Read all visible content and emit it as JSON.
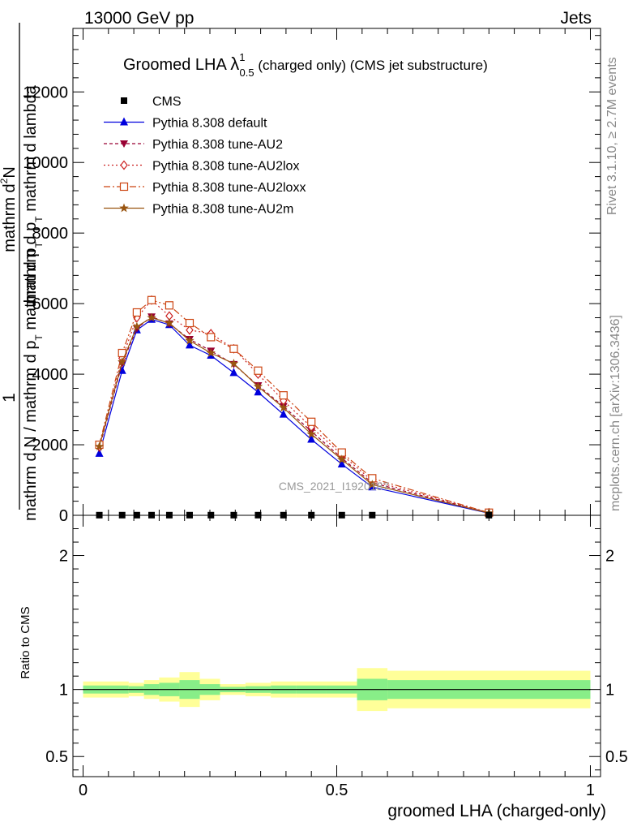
{
  "header": {
    "left": "13000 GeV pp",
    "right": "Jets"
  },
  "side_labels": {
    "right_top": "Rivet 3.1.10, ≥ 2.7M events",
    "right_bottom": "mcplots.cern.ch [arXiv:1306.3436]"
  },
  "chart_data": {
    "type": "line",
    "title": {
      "prefix": "Groomed LHA ",
      "symbol": "λ",
      "sup": "1",
      "sub": "0.5",
      "suffix": " (charged only) (CMS jet substructure)"
    },
    "watermark": "CMS_2021_I1920187",
    "ylabel": {
      "prefix": "1",
      "num": "mathrm d",
      "num_sup": "2",
      "num_rest": "N",
      "den_a": "mathrm d p",
      "den_a_sub": "T",
      "den_b": " mathrm d lambda",
      "norm_a": "mathrm d N / mathrm d p",
      "norm_a_sub": "T",
      "norm_b": " mathrm d p",
      "norm_b_sub": "T"
    },
    "xlabel": "groomed LHA (charged-only)",
    "ratio_ylabel": "Ratio to CMS",
    "xlim": [
      -0.02,
      1.02
    ],
    "ylim": [
      0,
      13800
    ],
    "ratio_ylim": [
      0.35,
      2.3
    ],
    "x_ticks": [
      0,
      0.5,
      1
    ],
    "x_tick_labels": [
      "0",
      "0.5",
      "1"
    ],
    "y_ticks": [
      0,
      2000,
      4000,
      6000,
      8000,
      10000,
      12000
    ],
    "y_tick_labels": [
      "0",
      "2000",
      "4000",
      "6000",
      "8000",
      "10000",
      "12000"
    ],
    "ratio_ticks": [
      0.5,
      1,
      2
    ],
    "ratio_tick_labels": [
      "0.5",
      "1",
      "2"
    ],
    "x": [
      0.032,
      0.077,
      0.106,
      0.135,
      0.17,
      0.21,
      0.252,
      0.297,
      0.345,
      0.395,
      0.45,
      0.51,
      0.57,
      0.8
    ],
    "cms": {
      "name": "CMS",
      "values": [
        5,
        5,
        5,
        5,
        5,
        5,
        5,
        5,
        5,
        5,
        5,
        5,
        5,
        5
      ]
    },
    "series": [
      {
        "name": "Pythia 8.308 default",
        "color": "#0000dd",
        "dash": "",
        "marker": "triangle-up",
        "values": [
          1750,
          4100,
          5250,
          5550,
          5400,
          4820,
          4530,
          4040,
          3490,
          2860,
          2150,
          1450,
          800,
          60
        ]
      },
      {
        "name": "Pythia 8.308 tune-AU2",
        "color": "#990033",
        "dash": "4,3",
        "marker": "triangle-down",
        "values": [
          1900,
          4300,
          5300,
          5630,
          5430,
          4990,
          4660,
          4280,
          3680,
          3090,
          2380,
          1620,
          920,
          70
        ]
      },
      {
        "name": "Pythia 8.308 tune-AU2lox",
        "color": "#cc2222",
        "dash": "2,3",
        "marker": "diamond",
        "values": [
          1950,
          4450,
          5600,
          6100,
          5650,
          5250,
          5150,
          4720,
          4000,
          3250,
          2500,
          1720,
          980,
          75
        ]
      },
      {
        "name": "Pythia 8.308 tune-AU2loxx",
        "color": "#cc4411",
        "dash": "8,3,2,3",
        "marker": "square-open",
        "values": [
          2000,
          4600,
          5750,
          6100,
          5950,
          5450,
          5050,
          4720,
          4100,
          3400,
          2650,
          1780,
          1050,
          75
        ]
      },
      {
        "name": "Pythia 8.308 tune-AU2m",
        "color": "#995511",
        "dash": "",
        "marker": "star",
        "values": [
          1950,
          4350,
          5350,
          5600,
          5450,
          4950,
          4600,
          4300,
          3650,
          3050,
          2300,
          1580,
          870,
          65
        ]
      }
    ],
    "ratio_bins": [
      {
        "x0": 0.0,
        "x1": 0.09,
        "g": 0.03,
        "y": 0.06
      },
      {
        "x0": 0.09,
        "x1": 0.12,
        "g": 0.025,
        "y": 0.05
      },
      {
        "x0": 0.12,
        "x1": 0.15,
        "g": 0.04,
        "y": 0.07
      },
      {
        "x0": 0.15,
        "x1": 0.19,
        "g": 0.05,
        "y": 0.09
      },
      {
        "x0": 0.19,
        "x1": 0.23,
        "g": 0.07,
        "y": 0.13
      },
      {
        "x0": 0.23,
        "x1": 0.27,
        "g": 0.04,
        "y": 0.08
      },
      {
        "x0": 0.27,
        "x1": 0.32,
        "g": 0.02,
        "y": 0.04
      },
      {
        "x0": 0.32,
        "x1": 0.37,
        "g": 0.025,
        "y": 0.05
      },
      {
        "x0": 0.37,
        "x1": 0.42,
        "g": 0.03,
        "y": 0.06
      },
      {
        "x0": 0.42,
        "x1": 0.48,
        "g": 0.03,
        "y": 0.06
      },
      {
        "x0": 0.48,
        "x1": 0.54,
        "g": 0.03,
        "y": 0.06
      },
      {
        "x0": 0.54,
        "x1": 0.6,
        "g": 0.08,
        "y": 0.16
      },
      {
        "x0": 0.6,
        "x1": 1.0,
        "g": 0.07,
        "y": 0.14
      }
    ],
    "colors": {
      "stat_band": "#88ee88",
      "total_band": "#ffff99"
    }
  }
}
